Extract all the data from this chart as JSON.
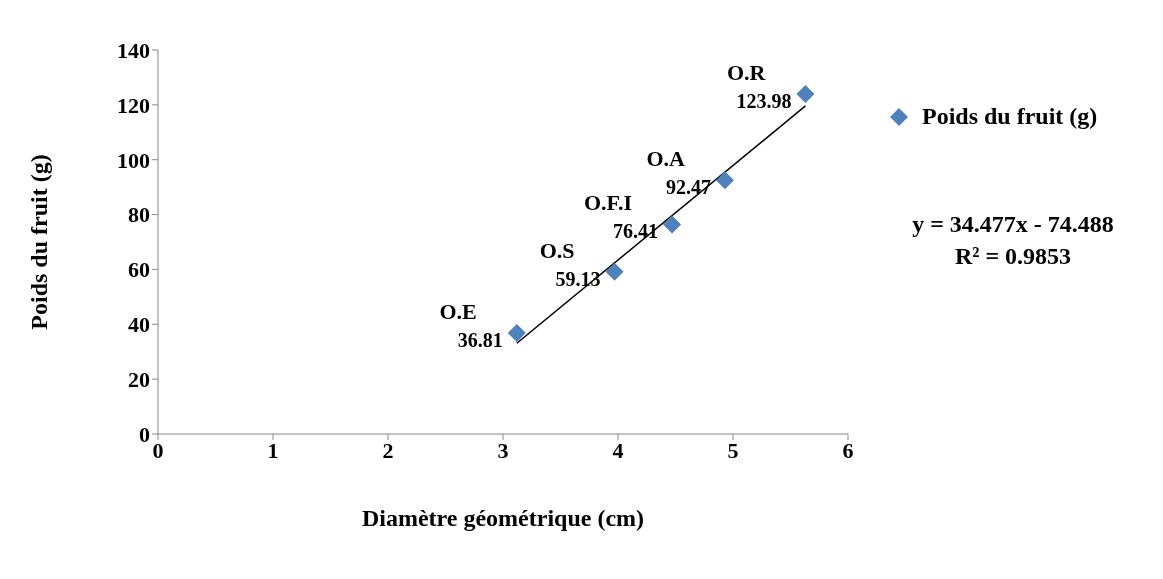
{
  "chart_data": {
    "type": "scatter",
    "xlabel": "Diamètre géométrique (cm)",
    "ylabel": "Poids du fruit (g)",
    "xlim": [
      0,
      6
    ],
    "xticks": [
      0,
      1,
      2,
      3,
      4,
      5,
      6
    ],
    "ylim": [
      0,
      140
    ],
    "yticks": [
      0,
      20,
      40,
      60,
      80,
      100,
      120,
      140
    ],
    "grid": false,
    "legend": "right",
    "series": [
      {
        "name": "Poids du fruit (g)",
        "color": "#4f81bd",
        "marker": "diamond",
        "x": [
          3.12,
          3.97,
          4.47,
          4.93,
          5.63
        ],
        "values": [
          36.81,
          59.13,
          76.41,
          92.47,
          123.98
        ],
        "value_labels": [
          "36.81",
          "59.13",
          "76.41",
          "92.47",
          "123.98"
        ]
      },
      {
        "type": "line",
        "color": "#000000",
        "marker": "none",
        "x": [
          3.12,
          5.63
        ],
        "values": [
          33.1,
          119.6
        ]
      }
    ],
    "annotations": [
      {
        "text": "O.E",
        "x": 3.12,
        "y": 36.81
      },
      {
        "text": "O.S",
        "x": 3.97,
        "y": 59.13
      },
      {
        "text": "O.F.I",
        "x": 4.47,
        "y": 76.41
      },
      {
        "text": "O.A",
        "x": 4.93,
        "y": 92.47
      },
      {
        "text": "O.R",
        "x": 5.63,
        "y": 123.98
      },
      "y = 34.477x - 74.488",
      "R² = 0.9853"
    ]
  }
}
